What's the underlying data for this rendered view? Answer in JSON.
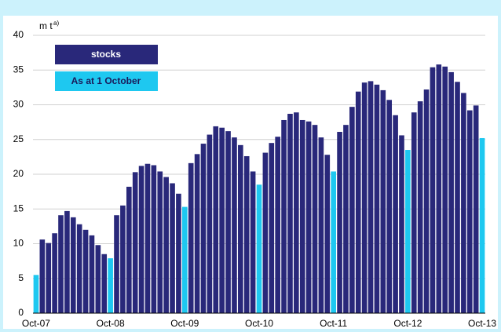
{
  "chart_data": {
    "type": "bar",
    "y_label": "m t",
    "y_label_note": "a)",
    "categories": [
      "Oct-07",
      null,
      null,
      null,
      null,
      null,
      null,
      null,
      null,
      null,
      null,
      null,
      "Oct-08",
      null,
      null,
      null,
      null,
      null,
      null,
      null,
      null,
      null,
      null,
      null,
      "Oct-09",
      null,
      null,
      null,
      null,
      null,
      null,
      null,
      null,
      null,
      null,
      null,
      "Oct-10",
      null,
      null,
      null,
      null,
      null,
      null,
      null,
      null,
      null,
      null,
      null,
      "Oct-11",
      null,
      null,
      null,
      null,
      null,
      null,
      null,
      null,
      null,
      null,
      null,
      "Oct-12",
      null,
      null,
      null,
      null,
      null,
      null,
      null,
      null,
      null,
      null,
      null,
      "Oct-13"
    ],
    "series": [
      {
        "name": "stocks",
        "color": "#29287a",
        "values": [
          null,
          10.6,
          10.1,
          11.5,
          14.1,
          14.7,
          13.8,
          12.8,
          12.0,
          11.2,
          9.8,
          8.5,
          null,
          14.1,
          15.5,
          18.2,
          20.3,
          21.2,
          21.5,
          21.3,
          20.4,
          19.6,
          18.7,
          17.2,
          null,
          21.6,
          22.9,
          24.4,
          25.7,
          26.9,
          26.7,
          26.2,
          25.3,
          24.2,
          22.6,
          20.4,
          null,
          23.1,
          24.5,
          25.4,
          27.8,
          28.7,
          28.9,
          27.8,
          27.6,
          27.1,
          25.3,
          22.8,
          null,
          26.1,
          27.1,
          29.7,
          31.9,
          33.2,
          33.4,
          32.9,
          32.1,
          30.7,
          28.5,
          25.6,
          null,
          28.9,
          30.5,
          32.2,
          35.4,
          35.8,
          35.5,
          34.7,
          33.3,
          31.7,
          29.2,
          29.9,
          null
        ]
      },
      {
        "name": "As at 1 October",
        "color": "#1ec8f0",
        "values": [
          5.5,
          null,
          null,
          null,
          null,
          null,
          null,
          null,
          null,
          null,
          null,
          null,
          7.9,
          null,
          null,
          null,
          null,
          null,
          null,
          null,
          null,
          null,
          null,
          null,
          15.3,
          null,
          null,
          null,
          null,
          null,
          null,
          null,
          null,
          null,
          null,
          null,
          18.5,
          null,
          null,
          null,
          null,
          null,
          null,
          null,
          null,
          null,
          null,
          null,
          20.4,
          null,
          null,
          null,
          null,
          null,
          null,
          null,
          null,
          null,
          null,
          null,
          23.5,
          null,
          null,
          null,
          null,
          null,
          null,
          null,
          null,
          null,
          null,
          null,
          25.2
        ]
      }
    ],
    "ylim": [
      0,
      40
    ],
    "yticks": [
      0,
      5,
      10,
      15,
      20,
      25,
      30,
      35,
      40
    ],
    "grid": true,
    "legend": "top-left"
  }
}
